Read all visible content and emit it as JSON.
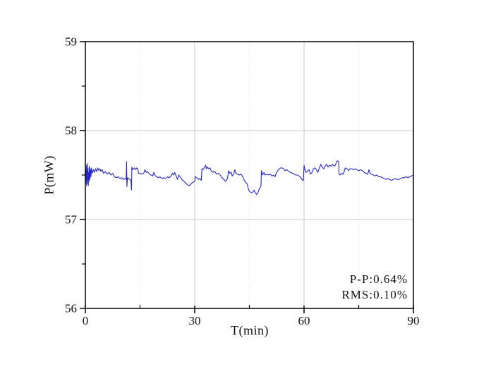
{
  "figure": {
    "background": "#ffffff"
  },
  "chart_data": {
    "type": "line",
    "title": "",
    "xlabel": "T(min)",
    "ylabel": "P(mW)",
    "xlim": [
      0,
      90
    ],
    "ylim": [
      56,
      59
    ],
    "x_ticks": {
      "major": [
        0,
        30,
        60,
        90
      ],
      "minor": [
        15,
        45,
        75
      ]
    },
    "y_ticks": {
      "major": [
        56,
        57,
        58,
        59
      ],
      "minor": [
        56.5,
        57.5,
        58.5
      ]
    },
    "grid": {
      "vertical_major": true,
      "vertical_minor": true,
      "horizontal_major": true,
      "horizontal_minor": false
    },
    "legend": null,
    "colors": {
      "line": "#2626c9",
      "grid_major": "#c8c8c8",
      "grid_minor": "#dcdcdc",
      "axis": "#000000",
      "text": "#111111"
    },
    "annotations": [
      "P-P:0.64%",
      "RMS:0.10%"
    ],
    "series": [
      {
        "points": [
          [
            0,
            57.5
          ],
          [
            0.1,
            57.56
          ],
          [
            0.18,
            57.42
          ],
          [
            0.26,
            57.61
          ],
          [
            0.34,
            57.38
          ],
          [
            0.42,
            57.56
          ],
          [
            0.5,
            57.4
          ],
          [
            0.58,
            57.63
          ],
          [
            0.66,
            57.45
          ],
          [
            0.74,
            57.58
          ],
          [
            0.82,
            57.38
          ],
          [
            0.9,
            57.53
          ],
          [
            1.0,
            57.43
          ],
          [
            1.1,
            57.6
          ],
          [
            1.25,
            57.45
          ],
          [
            1.4,
            57.57
          ],
          [
            1.55,
            57.48
          ],
          [
            1.7,
            57.58
          ],
          [
            1.9,
            57.52
          ],
          [
            2.2,
            57.56
          ],
          [
            2.5,
            57.53
          ],
          [
            2.8,
            57.57
          ],
          [
            3.1,
            57.54
          ],
          [
            3.4,
            57.58
          ],
          [
            3.7,
            57.55
          ],
          [
            4.0,
            57.57
          ],
          [
            4.3,
            57.54
          ],
          [
            4.6,
            57.56
          ],
          [
            5.0,
            57.52
          ],
          [
            5.5,
            57.54
          ],
          [
            6.0,
            57.51
          ],
          [
            6.5,
            57.53
          ],
          [
            7.0,
            57.5
          ],
          [
            7.5,
            57.52
          ],
          [
            8.0,
            57.48
          ],
          [
            8.5,
            57.47
          ],
          [
            9.0,
            57.48
          ],
          [
            9.5,
            57.46
          ],
          [
            10.0,
            57.47
          ],
          [
            10.5,
            57.45
          ],
          [
            10.9,
            57.46
          ],
          [
            11.2,
            57.45
          ],
          [
            11.3,
            57.65
          ],
          [
            11.4,
            57.37
          ],
          [
            11.55,
            57.47
          ],
          [
            11.9,
            57.46
          ],
          [
            12.2,
            57.45
          ],
          [
            12.5,
            57.44
          ],
          [
            12.65,
            57.33
          ],
          [
            12.75,
            57.59
          ],
          [
            12.95,
            57.56
          ],
          [
            13.2,
            57.57
          ],
          [
            13.5,
            57.58
          ],
          [
            13.8,
            57.56
          ],
          [
            14.1,
            57.58
          ],
          [
            14.4,
            57.57
          ],
          [
            14.6,
            57.52
          ],
          [
            15.0,
            57.52
          ],
          [
            15.5,
            57.51
          ],
          [
            16.0,
            57.52
          ],
          [
            16.4,
            57.56
          ],
          [
            16.7,
            57.53
          ],
          [
            17.0,
            57.54
          ],
          [
            17.4,
            57.52
          ],
          [
            18.0,
            57.5
          ],
          [
            18.5,
            57.49
          ],
          [
            18.8,
            57.53
          ],
          [
            19.2,
            57.49
          ],
          [
            19.6,
            57.48
          ],
          [
            20.0,
            57.47
          ],
          [
            20.5,
            57.48
          ],
          [
            21.0,
            57.46
          ],
          [
            21.5,
            57.47
          ],
          [
            22.0,
            57.46
          ],
          [
            22.5,
            57.48
          ],
          [
            23.0,
            57.47
          ],
          [
            23.5,
            57.49
          ],
          [
            23.9,
            57.52
          ],
          [
            24.2,
            57.5
          ],
          [
            24.5,
            57.53
          ],
          [
            25.0,
            57.48
          ],
          [
            25.3,
            57.45
          ],
          [
            25.6,
            57.5
          ],
          [
            26.0,
            57.48
          ],
          [
            26.5,
            57.45
          ],
          [
            27.0,
            57.43
          ],
          [
            27.5,
            57.41
          ],
          [
            28.0,
            57.39
          ],
          [
            28.4,
            57.38
          ],
          [
            28.8,
            57.39
          ],
          [
            29.2,
            57.41
          ],
          [
            29.6,
            57.42
          ],
          [
            30.0,
            57.43
          ],
          [
            30.15,
            57.48
          ],
          [
            30.6,
            57.47
          ],
          [
            31.0,
            57.45
          ],
          [
            31.4,
            57.46
          ],
          [
            31.8,
            57.44
          ],
          [
            32.0,
            57.57
          ],
          [
            32.3,
            57.56
          ],
          [
            32.6,
            57.58
          ],
          [
            33.0,
            57.61
          ],
          [
            33.2,
            57.57
          ],
          [
            33.5,
            57.59
          ],
          [
            33.8,
            57.57
          ],
          [
            34.2,
            57.58
          ],
          [
            34.5,
            57.55
          ],
          [
            35.0,
            57.53
          ],
          [
            35.5,
            57.54
          ],
          [
            36.0,
            57.51
          ],
          [
            36.5,
            57.52
          ],
          [
            37.0,
            57.5
          ],
          [
            37.5,
            57.47
          ],
          [
            38.0,
            57.45
          ],
          [
            38.5,
            57.43
          ],
          [
            39.0,
            57.46
          ],
          [
            39.3,
            57.55
          ],
          [
            39.6,
            57.52
          ],
          [
            40.0,
            57.53
          ],
          [
            40.3,
            57.49
          ],
          [
            40.7,
            57.51
          ],
          [
            41.0,
            57.56
          ],
          [
            41.3,
            57.52
          ],
          [
            41.7,
            57.51
          ],
          [
            42.2,
            57.5
          ],
          [
            42.7,
            57.51
          ],
          [
            43.2,
            57.48
          ],
          [
            43.6,
            57.44
          ],
          [
            44.0,
            57.42
          ],
          [
            44.4,
            57.4
          ],
          [
            44.8,
            57.33
          ],
          [
            45.2,
            57.31
          ],
          [
            45.6,
            57.3
          ],
          [
            46.0,
            57.31
          ],
          [
            46.3,
            57.33
          ],
          [
            46.6,
            57.3
          ],
          [
            47.0,
            57.28
          ],
          [
            47.4,
            57.31
          ],
          [
            47.8,
            57.35
          ],
          [
            48.2,
            57.38
          ],
          [
            48.3,
            57.55
          ],
          [
            48.6,
            57.5
          ],
          [
            49.0,
            57.53
          ],
          [
            49.3,
            57.5
          ],
          [
            49.7,
            57.51
          ],
          [
            50.2,
            57.5
          ],
          [
            50.7,
            57.51
          ],
          [
            51.2,
            57.49
          ],
          [
            51.7,
            57.5
          ],
          [
            52.0,
            57.48
          ],
          [
            52.4,
            57.52
          ],
          [
            52.8,
            57.55
          ],
          [
            53.2,
            57.57
          ],
          [
            53.6,
            57.58
          ],
          [
            54.0,
            57.58
          ],
          [
            54.4,
            57.57
          ],
          [
            54.8,
            57.55
          ],
          [
            55.3,
            57.56
          ],
          [
            55.8,
            57.54
          ],
          [
            56.3,
            57.53
          ],
          [
            56.8,
            57.52
          ],
          [
            57.3,
            57.51
          ],
          [
            57.7,
            57.5
          ],
          [
            58.2,
            57.5
          ],
          [
            58.6,
            57.49
          ],
          [
            59.0,
            57.48
          ],
          [
            59.4,
            57.45
          ],
          [
            59.8,
            57.44
          ],
          [
            60.0,
            57.61
          ],
          [
            60.3,
            57.55
          ],
          [
            60.6,
            57.53
          ],
          [
            61.0,
            57.55
          ],
          [
            61.4,
            57.56
          ],
          [
            61.8,
            57.51
          ],
          [
            62.2,
            57.53
          ],
          [
            62.6,
            57.57
          ],
          [
            63.0,
            57.58
          ],
          [
            63.4,
            57.56
          ],
          [
            63.8,
            57.53
          ],
          [
            64.2,
            57.58
          ],
          [
            64.6,
            57.62
          ],
          [
            65.0,
            57.59
          ],
          [
            65.4,
            57.57
          ],
          [
            65.8,
            57.6
          ],
          [
            66.2,
            57.62
          ],
          [
            66.6,
            57.59
          ],
          [
            67.0,
            57.61
          ],
          [
            67.4,
            57.6
          ],
          [
            67.8,
            57.62
          ],
          [
            68.2,
            57.6
          ],
          [
            68.6,
            57.61
          ],
          [
            68.9,
            57.65
          ],
          [
            69.2,
            57.66
          ],
          [
            69.5,
            57.65
          ],
          [
            69.6,
            57.51
          ],
          [
            70.0,
            57.5
          ],
          [
            70.4,
            57.52
          ],
          [
            70.8,
            57.51
          ],
          [
            71.3,
            57.58
          ],
          [
            71.8,
            57.57
          ],
          [
            72.2,
            57.55
          ],
          [
            72.6,
            57.57
          ],
          [
            73.0,
            57.57
          ],
          [
            73.5,
            57.56
          ],
          [
            74.0,
            57.57
          ],
          [
            74.5,
            57.56
          ],
          [
            75.0,
            57.55
          ],
          [
            75.5,
            57.56
          ],
          [
            76.0,
            57.55
          ],
          [
            76.5,
            57.53
          ],
          [
            77.0,
            57.52
          ],
          [
            77.5,
            57.51
          ],
          [
            77.8,
            57.56
          ],
          [
            78.1,
            57.52
          ],
          [
            78.5,
            57.51
          ],
          [
            79.0,
            57.5
          ],
          [
            79.5,
            57.49
          ],
          [
            80.0,
            57.5
          ],
          [
            80.5,
            57.48
          ],
          [
            81.0,
            57.48
          ],
          [
            81.5,
            57.47
          ],
          [
            82.0,
            57.46
          ],
          [
            82.5,
            57.45
          ],
          [
            83.0,
            57.46
          ],
          [
            83.5,
            57.45
          ],
          [
            84.0,
            57.44
          ],
          [
            84.5,
            57.45
          ],
          [
            85.0,
            57.46
          ],
          [
            85.5,
            57.45
          ],
          [
            86.0,
            57.45
          ],
          [
            86.5,
            57.46
          ],
          [
            87.0,
            57.47
          ],
          [
            87.5,
            57.47
          ],
          [
            88.0,
            57.48
          ],
          [
            88.5,
            57.47
          ],
          [
            89.0,
            57.48
          ],
          [
            89.5,
            57.49
          ],
          [
            90.0,
            57.5
          ]
        ]
      }
    ]
  }
}
